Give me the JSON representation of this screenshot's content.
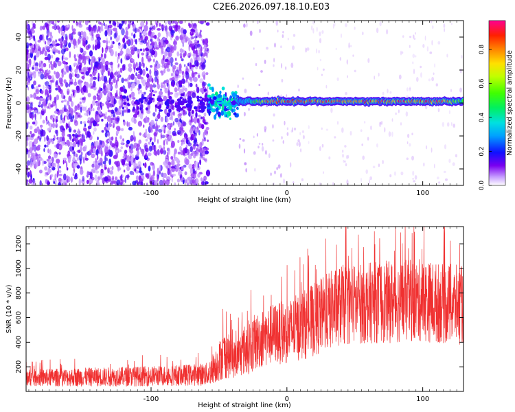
{
  "title": "C2E6.2026.097.18.10.E03",
  "colors": {
    "snr_line": "#f03030",
    "axis": "#000000",
    "background": "#ffffff"
  },
  "chart_data": [
    {
      "type": "heatmap",
      "xlabel": "Height of straight line (km)",
      "ylabel": "Frequency (Hz)",
      "xlim": [
        -192,
        130
      ],
      "ylim": [
        -50,
        50
      ],
      "xticks": [
        -100,
        0,
        100
      ],
      "yticks": [
        -40,
        -20,
        0,
        20,
        40
      ],
      "colorbar": {
        "label": "Normalized spectral amplitude",
        "ticks": [
          "0.0",
          "0.2",
          "0.4",
          "0.6",
          "0.8"
        ],
        "range": [
          0,
          0.97
        ]
      },
      "regions": [
        {
          "name": "noise",
          "x_range": [
            -192,
            -58
          ],
          "freq_range": [
            -50,
            50
          ],
          "amplitude": 0.05
        },
        {
          "name": "onset",
          "x_range": [
            -58,
            -36
          ],
          "freq_range": [
            -12,
            8
          ],
          "amplitude": 0.35
        },
        {
          "name": "carrier",
          "x_range": [
            -36,
            130
          ],
          "freq": 1,
          "amplitude": 0.9
        }
      ]
    },
    {
      "type": "line",
      "xlabel": "Height of straight line (km)",
      "ylabel": "SNR (10 * v/v)",
      "xlim": [
        -192,
        130
      ],
      "ylim": [
        0,
        1340
      ],
      "xticks": [
        -100,
        0,
        100
      ],
      "yticks": [
        200,
        400,
        600,
        800,
        1000,
        1200
      ],
      "series": [
        {
          "name": "SNR",
          "envelope_x": [
            -192,
            -160,
            -120,
            -80,
            -58,
            -46,
            -38,
            -30,
            -20,
            -10,
            0,
            10,
            20,
            30,
            40,
            60,
            80,
            100,
            110,
            120,
            130
          ],
          "envelope_mean": [
            110,
            115,
            120,
            130,
            140,
            300,
            260,
            350,
            420,
            470,
            480,
            530,
            580,
            650,
            700,
            720,
            730,
            740,
            720,
            710,
            700
          ],
          "envelope_spread": [
            70,
            75,
            80,
            85,
            95,
            200,
            150,
            220,
            240,
            250,
            260,
            280,
            300,
            320,
            330,
            330,
            340,
            340,
            330,
            330,
            320
          ]
        }
      ]
    }
  ]
}
